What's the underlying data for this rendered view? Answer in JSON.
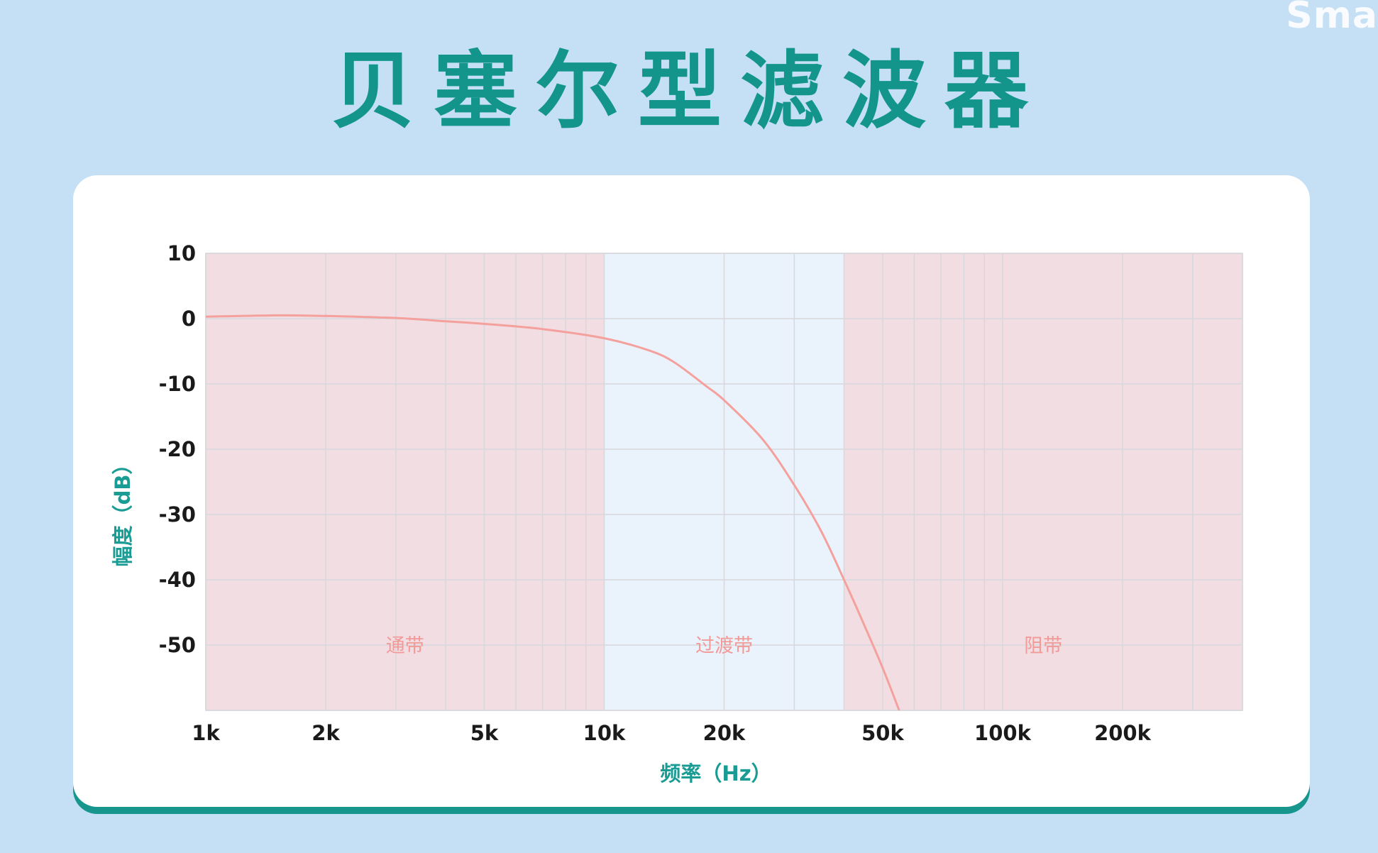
{
  "watermark": "Sma",
  "title": "贝塞尔型滤波器",
  "chart_data": {
    "type": "line",
    "title": "贝塞尔型滤波器",
    "xlabel": "频率（Hz）",
    "ylabel": "幅度（dB）",
    "x_scale": "log",
    "xlim": [
      1000,
      400000
    ],
    "ylim": [
      -60,
      10
    ],
    "x_ticks": [
      {
        "value": 1000,
        "label": "1k"
      },
      {
        "value": 2000,
        "label": "2k"
      },
      {
        "value": 5000,
        "label": "5k"
      },
      {
        "value": 10000,
        "label": "10k"
      },
      {
        "value": 20000,
        "label": "20k"
      },
      {
        "value": 50000,
        "label": "50k"
      },
      {
        "value": 100000,
        "label": "100k"
      },
      {
        "value": 200000,
        "label": "200k"
      }
    ],
    "y_ticks": [
      {
        "value": 10,
        "label": "10"
      },
      {
        "value": 0,
        "label": "0"
      },
      {
        "value": -10,
        "label": "-10"
      },
      {
        "value": -20,
        "label": "-20"
      },
      {
        "value": -30,
        "label": "-30"
      },
      {
        "value": -40,
        "label": "-40"
      },
      {
        "value": -50,
        "label": "-50"
      }
    ],
    "grid": true,
    "regions": [
      {
        "label": "通带",
        "x_start": 1000,
        "x_end": 10000,
        "color": "#f2dde2"
      },
      {
        "label": "过渡带",
        "x_start": 10000,
        "x_end": 40000,
        "color": "#eaf3fc"
      },
      {
        "label": "阻带",
        "x_start": 40000,
        "x_end": 400000,
        "color": "#f2dde2"
      }
    ],
    "series": [
      {
        "color": "#f4a19d",
        "points": [
          {
            "x": 1000,
            "y": 0.3
          },
          {
            "x": 1500,
            "y": 0.5
          },
          {
            "x": 2000,
            "y": 0.4
          },
          {
            "x": 3000,
            "y": 0.1
          },
          {
            "x": 4000,
            "y": -0.4
          },
          {
            "x": 5000,
            "y": -0.8
          },
          {
            "x": 7000,
            "y": -1.6
          },
          {
            "x": 10000,
            "y": -3
          },
          {
            "x": 13000,
            "y": -4.9
          },
          {
            "x": 15000,
            "y": -6.7
          },
          {
            "x": 18000,
            "y": -10.3
          },
          {
            "x": 20000,
            "y": -12.5
          },
          {
            "x": 25000,
            "y": -18.5
          },
          {
            "x": 30000,
            "y": -25.5
          },
          {
            "x": 35000,
            "y": -32.5
          },
          {
            "x": 40000,
            "y": -40
          },
          {
            "x": 45000,
            "y": -47
          },
          {
            "x": 50000,
            "y": -53.5
          },
          {
            "x": 55000,
            "y": -60
          }
        ]
      }
    ]
  },
  "colors": {
    "background": "#c5e0f5",
    "accent": "#13958c",
    "card": "#ffffff",
    "grid": "#d8d8dc",
    "curve": "#f4a19d"
  }
}
